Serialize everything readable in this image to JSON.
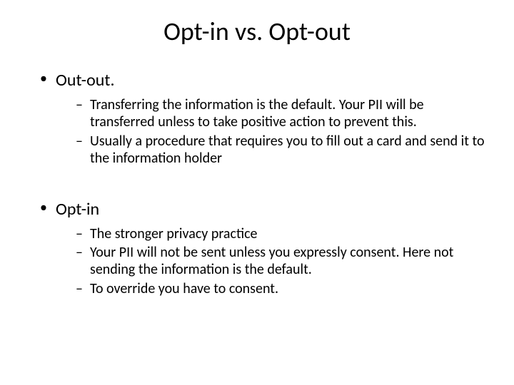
{
  "slide": {
    "title": "Opt-in vs. Opt-out",
    "title_fontsize": 36,
    "background_color": "#ffffff",
    "text_color": "#000000",
    "font_family": "Calibri",
    "sections": [
      {
        "heading": "Out-out.",
        "heading_fontsize": 24,
        "bullets": [
          "Transferring the information is the default.  Your PII will be transferred unless to take positive action to prevent this.",
          "Usually a procedure that requires you to fill out a card and send it to the information holder"
        ],
        "bullet_fontsize": 20
      },
      {
        "heading": "Opt-in",
        "heading_fontsize": 24,
        "bullets": [
          "The stronger privacy practice",
          "Your PII will not be sent unless you expressly consent. Here not sending the information is the default.",
          "To override you have to consent."
        ],
        "bullet_fontsize": 20
      }
    ]
  }
}
